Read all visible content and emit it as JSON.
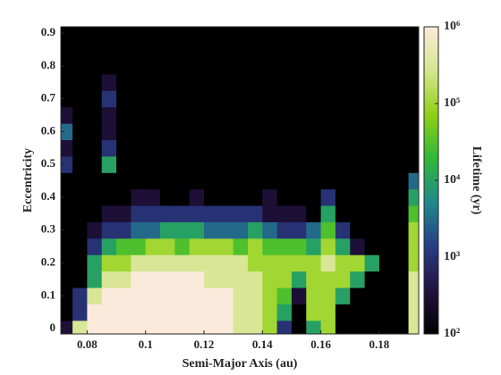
{
  "chart_data": {
    "type": "heatmap",
    "xlabel": "Semi-Major Axis (au)",
    "ylabel": "Eccentricity",
    "colorbar_label": "Lifetime (yr)",
    "xlim": [
      0.071,
      0.1935
    ],
    "xticks": [
      0.08,
      0.1,
      0.12,
      0.14,
      0.16,
      0.18
    ],
    "ylim": [
      -0.016,
      0.919
    ],
    "yticks": [
      0,
      0.1,
      0.2,
      0.3,
      0.4,
      0.5,
      0.6,
      0.7,
      0.8,
      0.9
    ],
    "clim": [
      100,
      1000000
    ],
    "color_scale": "log",
    "cticks": [
      {
        "value": 100,
        "label": "10²"
      },
      {
        "value": 1000,
        "label": "10³"
      },
      {
        "value": 10000,
        "label": "10⁴"
      },
      {
        "value": 100000,
        "label": "10⁵"
      },
      {
        "value": 1000000,
        "label": "10⁶"
      }
    ],
    "colormap": [
      "#000000",
      "#23123f",
      "#283d86",
      "#1f8a8c",
      "#2fb83a",
      "#8fd014",
      "#d6e68e",
      "#fbeadb"
    ],
    "x": [
      0.0725,
      0.0775,
      0.0825,
      0.0875,
      0.0925,
      0.0975,
      0.1025,
      0.1075,
      0.1125,
      0.1175,
      0.1225,
      0.1275,
      0.1325,
      0.1375,
      0.1425,
      0.1475,
      0.1525,
      0.1575,
      0.1625,
      0.1675,
      0.1725,
      0.1775,
      0.1825,
      0.1875,
      0.1925
    ],
    "y": [
      0,
      0.05,
      0.1,
      0.15,
      0.2,
      0.25,
      0.3,
      0.35,
      0.4,
      0.45,
      0.5,
      0.55,
      0.6,
      0.65,
      0.7,
      0.75,
      0.8,
      0.85,
      0.9
    ],
    "z": [
      [
        300,
        300000,
        1000000,
        1000000,
        1000000,
        1000000,
        1000000,
        1000000,
        1000000,
        1000000,
        1000000,
        1000000,
        300000,
        300000,
        100000,
        1000,
        100,
        10000,
        100000,
        100,
        100,
        100,
        100,
        100,
        300000
      ],
      [
        100,
        1000,
        1000000,
        1000000,
        1000000,
        1000000,
        1000000,
        1000000,
        1000000,
        1000000,
        1000000,
        1000000,
        300000,
        300000,
        100000,
        10000,
        100,
        100000,
        100000,
        100,
        100,
        100,
        100,
        100,
        300000
      ],
      [
        100,
        1000,
        300000,
        1000000,
        1000000,
        1000000,
        1000000,
        1000000,
        1000000,
        1000000,
        1000000,
        1000000,
        300000,
        300000,
        100000,
        30000,
        300,
        100000,
        100000,
        10000,
        100,
        100,
        100,
        100,
        300000
      ],
      [
        100,
        100,
        10000,
        300000,
        300000,
        1000000,
        1000000,
        1000000,
        1000000,
        1000000,
        300000,
        300000,
        300000,
        300000,
        100000,
        100000,
        10000,
        100000,
        100000,
        100000,
        10000,
        100,
        100,
        100,
        300000
      ],
      [
        100,
        100,
        10000,
        100000,
        100000,
        300000,
        300000,
        300000,
        300000,
        300000,
        300000,
        300000,
        300000,
        100000,
        100000,
        100000,
        100000,
        100000,
        300000,
        100000,
        100000,
        10000,
        100,
        100,
        100000
      ],
      [
        100,
        100,
        1000,
        10000,
        30000,
        30000,
        100000,
        100000,
        30000,
        100000,
        100000,
        100000,
        30000,
        100000,
        30000,
        30000,
        30000,
        10000,
        100000,
        10000,
        300,
        100,
        100,
        100,
        100000
      ],
      [
        100,
        100,
        300,
        1000,
        1000,
        3000,
        3000,
        10000,
        10000,
        10000,
        3000,
        3000,
        3000,
        10000,
        3000,
        1000,
        1000,
        3000,
        30000,
        1000,
        100,
        100,
        100,
        100,
        100000
      ],
      [
        100,
        100,
        100,
        300,
        300,
        1000,
        1000,
        1000,
        1000,
        1000,
        1000,
        1000,
        1000,
        1000,
        300,
        300,
        300,
        100,
        10000,
        100,
        100,
        100,
        100,
        100,
        30000
      ],
      [
        100,
        100,
        100,
        100,
        100,
        300,
        300,
        100,
        100,
        300,
        100,
        100,
        100,
        100,
        300,
        100,
        100,
        100,
        1000,
        100,
        100,
        100,
        100,
        100,
        10000
      ],
      [
        100,
        100,
        100,
        100,
        100,
        100,
        100,
        100,
        100,
        100,
        100,
        100,
        100,
        100,
        100,
        100,
        100,
        100,
        100,
        100,
        100,
        100,
        100,
        100,
        3000
      ],
      [
        1000,
        100,
        100,
        10000,
        100,
        100,
        100,
        100,
        100,
        100,
        100,
        100,
        100,
        100,
        100,
        100,
        100,
        100,
        100,
        100,
        100,
        100,
        100,
        100,
        100
      ],
      [
        300,
        100,
        100,
        1000,
        100,
        100,
        100,
        100,
        100,
        100,
        100,
        100,
        100,
        100,
        100,
        100,
        100,
        100,
        100,
        100,
        100,
        100,
        100,
        100,
        100
      ],
      [
        3000,
        100,
        100,
        300,
        100,
        100,
        100,
        100,
        100,
        100,
        100,
        100,
        100,
        100,
        100,
        100,
        100,
        100,
        100,
        100,
        100,
        100,
        100,
        100,
        100
      ],
      [
        300,
        100,
        100,
        300,
        100,
        100,
        100,
        100,
        100,
        100,
        100,
        100,
        100,
        100,
        100,
        100,
        100,
        100,
        100,
        100,
        100,
        100,
        100,
        100,
        100
      ],
      [
        100,
        100,
        100,
        1000,
        100,
        100,
        100,
        100,
        100,
        100,
        100,
        100,
        100,
        100,
        100,
        100,
        100,
        100,
        100,
        100,
        100,
        100,
        100,
        100,
        100
      ],
      [
        100,
        100,
        100,
        300,
        100,
        100,
        100,
        100,
        100,
        100,
        100,
        100,
        100,
        100,
        100,
        100,
        100,
        100,
        100,
        100,
        100,
        100,
        100,
        100,
        100
      ],
      [
        100,
        100,
        100,
        100,
        100,
        100,
        100,
        100,
        100,
        100,
        100,
        100,
        100,
        100,
        100,
        100,
        100,
        100,
        100,
        100,
        100,
        100,
        100,
        100,
        100
      ],
      [
        100,
        100,
        100,
        100,
        100,
        100,
        100,
        100,
        100,
        100,
        100,
        100,
        100,
        100,
        100,
        100,
        100,
        100,
        100,
        100,
        100,
        100,
        100,
        100,
        100
      ],
      [
        100,
        100,
        100,
        100,
        100,
        100,
        100,
        100,
        100,
        100,
        100,
        100,
        100,
        100,
        100,
        100,
        100,
        100,
        100,
        100,
        100,
        100,
        100,
        100,
        100
      ]
    ]
  }
}
